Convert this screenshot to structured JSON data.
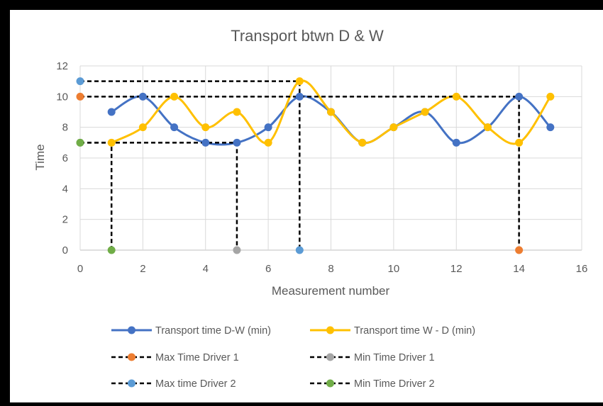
{
  "chart_data": {
    "type": "line",
    "title": "Transport  btwn D & W",
    "xlabel": "Measurement number",
    "ylabel": "Time",
    "xlim": [
      0,
      16
    ],
    "ylim": [
      0,
      12
    ],
    "x_ticks": [
      "0",
      "2",
      "4",
      "6",
      "8",
      "10",
      "12",
      "14",
      "16"
    ],
    "y_ticks": [
      "0",
      "2",
      "4",
      "6",
      "8",
      "10",
      "12"
    ],
    "grid": "horizontal and vertical gridlines",
    "legend_position": "bottom",
    "series": [
      {
        "name": "Transport time  D-W (min)",
        "color": "#4472C4",
        "style": "smooth line with markers",
        "x": [
          1,
          2,
          3,
          4,
          5,
          6,
          7,
          8,
          9,
          10,
          11,
          12,
          13,
          14,
          15
        ],
        "y": [
          9,
          10,
          8,
          7,
          7,
          8,
          10,
          9,
          7,
          8,
          9,
          7,
          8,
          10,
          8
        ]
      },
      {
        "name": "Transport time  W - D (min)",
        "color": "#FFC000",
        "style": "smooth line with markers",
        "x": [
          1,
          2,
          3,
          4,
          5,
          6,
          7,
          8,
          9,
          10,
          11,
          12,
          13,
          14,
          15
        ],
        "y": [
          7,
          8,
          10,
          8,
          9,
          7,
          11,
          9,
          7,
          8,
          9,
          10,
          8,
          7,
          10
        ]
      },
      {
        "name": "Max Time Driver 1",
        "color": "#ED7D31",
        "style": "dashed",
        "x": [
          0,
          14,
          14
        ],
        "y": [
          10,
          10,
          0
        ]
      },
      {
        "name": "Min Time Driver 1",
        "color": "#A5A5A5",
        "style": "dashed",
        "x": [
          0,
          5,
          5
        ],
        "y": [
          7,
          7,
          0
        ]
      },
      {
        "name": "Max time Driver 2",
        "color": "#5B9BD5",
        "style": "dashed",
        "x": [
          0,
          7,
          7
        ],
        "y": [
          11,
          11,
          0
        ]
      },
      {
        "name": "Min Time Driver 2",
        "color": "#70AD47",
        "style": "dashed",
        "x": [
          0,
          1,
          1
        ],
        "y": [
          7,
          7,
          0
        ]
      }
    ]
  }
}
